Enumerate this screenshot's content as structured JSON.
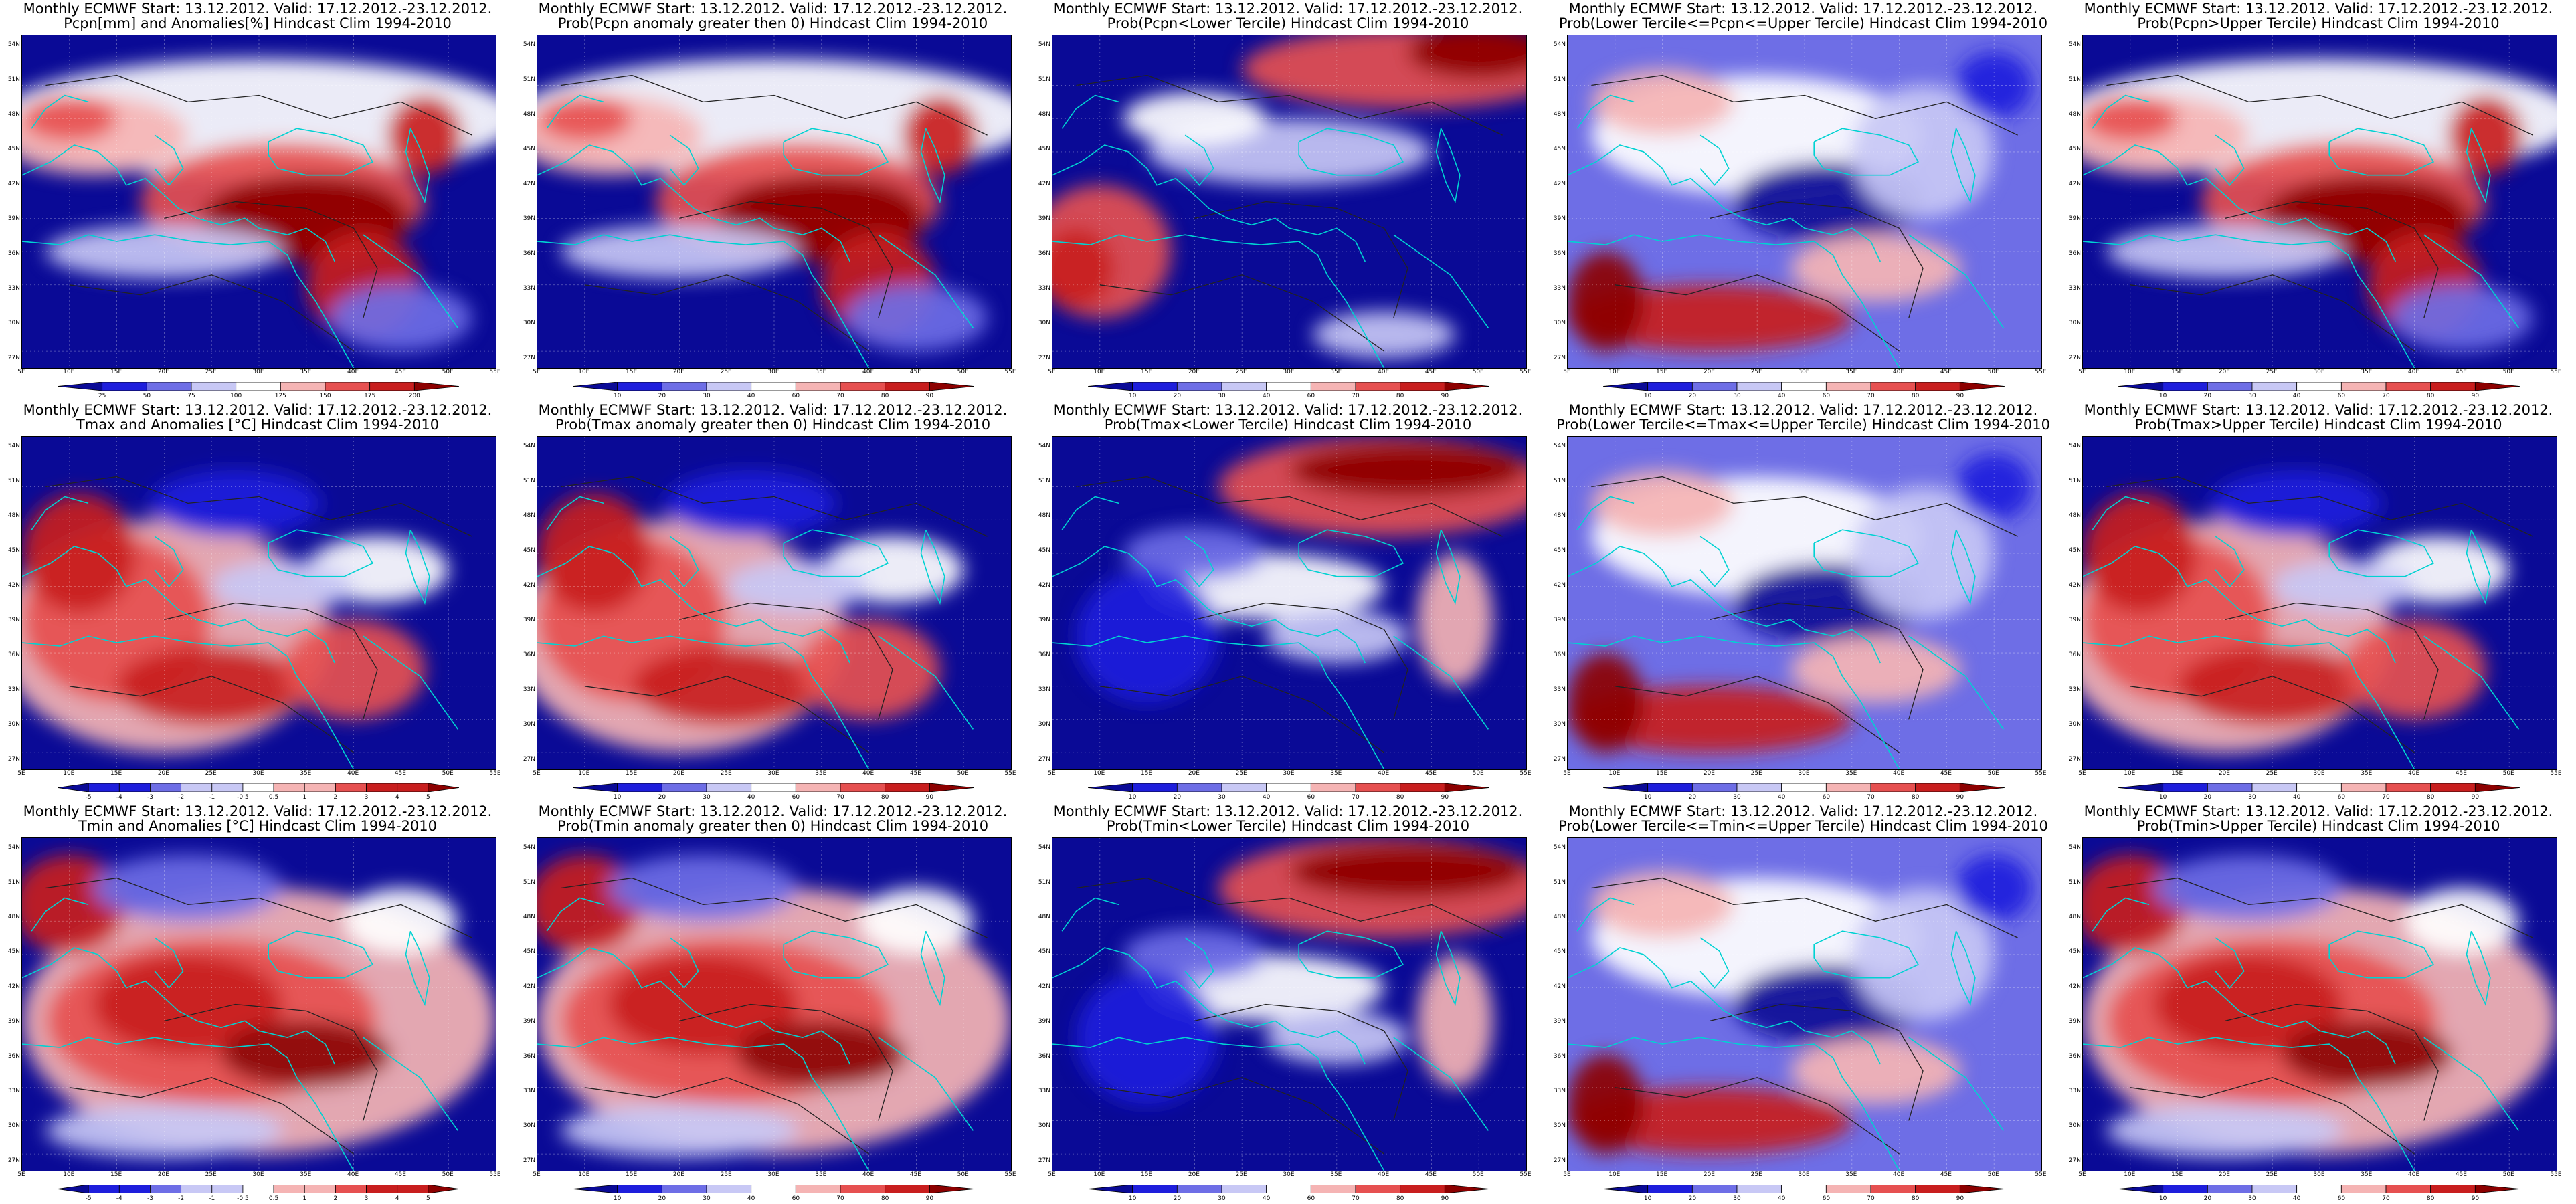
{
  "colors": {
    "ocean_blue": "#0a0a96",
    "deep_blue": "#1e1edc",
    "mid_blue": "#6e6ee6",
    "light_blue": "#c8c8f5",
    "white": "#ffffff",
    "light_red": "#f5b4b4",
    "mid_red": "#e65050",
    "deep_red": "#c81e1e",
    "dark_red": "#8c0000",
    "coast": "#00d2d2",
    "contour": "#222222"
  },
  "lat_labels": [
    "54N",
    "51N",
    "48N",
    "45N",
    "42N",
    "39N",
    "36N",
    "33N",
    "30N",
    "27N"
  ],
  "lon_labels": [
    "5E",
    "10E",
    "15E",
    "20E",
    "25E",
    "30E",
    "35E",
    "40E",
    "45E",
    "50E",
    "55E"
  ],
  "scales": {
    "precip": [
      "25",
      "50",
      "75",
      "100",
      "125",
      "150",
      "175",
      "200"
    ],
    "prob": [
      "10",
      "20",
      "30",
      "40",
      "60",
      "70",
      "80",
      "90"
    ],
    "temp": [
      "-5",
      "-4",
      "-3",
      "-2",
      "-1",
      "-0.5",
      "0.5",
      "1",
      "2",
      "3",
      "4",
      "5"
    ]
  },
  "panels": [
    {
      "title1": "Monthly ECMWF Start: 13.12.2012. Valid: 17.12.2012.-23.12.2012.",
      "title2": "Pcpn[mm] and Anomalies[%] Hindcast Clim 1994-2010",
      "scale": "precip",
      "pattern": "wet"
    },
    {
      "title1": "Monthly ECMWF Start: 13.12.2012. Valid: 17.12.2012.-23.12.2012.",
      "title2": "Prob(Pcpn anomaly greater then 0) Hindcast Clim 1994-2010",
      "scale": "prob",
      "pattern": "wet"
    },
    {
      "title1": "Monthly ECMWF Start: 13.12.2012. Valid: 17.12.2012.-23.12.2012.",
      "title2": "Prob(Pcpn<Lower Tercile) Hindcast Clim 1994-2010",
      "scale": "prob",
      "pattern": "drysouth"
    },
    {
      "title1": "Monthly ECMWF Start: 13.12.2012. Valid: 17.12.2012.-23.12.2012.",
      "title2": "Prob(Lower Tercile<=Pcpn<=Upper Tercile) Hindcast Clim 1994-2010",
      "scale": "prob",
      "pattern": "mixed"
    },
    {
      "title1": "Monthly ECMWF Start: 13.12.2012. Valid: 17.12.2012.-23.12.2012.",
      "title2": "Prob(Pcpn>Upper Tercile) Hindcast Clim 1994-2010",
      "scale": "prob",
      "pattern": "wet"
    },
    {
      "title1": "Monthly ECMWF Start: 13.12.2012. Valid: 17.12.2012.-23.12.2012.",
      "title2": "Tmax and Anomalies [°C] Hindcast Clim 1994-2010",
      "scale": "temp",
      "pattern": "warmwest"
    },
    {
      "title1": "Monthly ECMWF Start: 13.12.2012. Valid: 17.12.2012.-23.12.2012.",
      "title2": "Prob(Tmax anomaly greater then 0) Hindcast Clim 1994-2010",
      "scale": "prob",
      "pattern": "warmwest"
    },
    {
      "title1": "Monthly ECMWF Start: 13.12.2012. Valid: 17.12.2012.-23.12.2012.",
      "title2": "Prob(Tmax<Lower Tercile) Hindcast Clim 1994-2010",
      "scale": "prob",
      "pattern": "coldnortheast"
    },
    {
      "title1": "Monthly ECMWF Start: 13.12.2012. Valid: 17.12.2012.-23.12.2012.",
      "title2": "Prob(Lower Tercile<=Tmax<=Upper Tercile) Hindcast Clim 1994-2010",
      "scale": "prob",
      "pattern": "mixed"
    },
    {
      "title1": "Monthly ECMWF Start: 13.12.2012. Valid: 17.12.2012.-23.12.2012.",
      "title2": "Prob(Tmax>Upper Tercile) Hindcast Clim 1994-2010",
      "scale": "prob",
      "pattern": "warmwest"
    },
    {
      "title1": "Monthly ECMWF Start: 13.12.2012. Valid: 17.12.2012.-23.12.2012.",
      "title2": "Tmin and Anomalies [°C] Hindcast Clim 1994-2010",
      "scale": "temp",
      "pattern": "warmwide"
    },
    {
      "title1": "Monthly ECMWF Start: 13.12.2012. Valid: 17.12.2012.-23.12.2012.",
      "title2": "Prob(Tmin anomaly greater then 0) Hindcast Clim 1994-2010",
      "scale": "prob",
      "pattern": "warmwide"
    },
    {
      "title1": "Monthly ECMWF Start: 13.12.2012. Valid: 17.12.2012.-23.12.2012.",
      "title2": "Prob(Tmin<Lower Tercile) Hindcast Clim 1994-2010",
      "scale": "prob",
      "pattern": "coldnortheast"
    },
    {
      "title1": "Monthly ECMWF Start: 13.12.2012. Valid: 17.12.2012.-23.12.2012.",
      "title2": "Prob(Lower Tercile<=Tmin<=Upper Tercile) Hindcast Clim 1994-2010",
      "scale": "prob",
      "pattern": "mixed"
    },
    {
      "title1": "Monthly ECMWF Start: 13.12.2012. Valid: 17.12.2012.-23.12.2012.",
      "title2": "Prob(Tmin>Upper Tercile) Hindcast Clim 1994-2010",
      "scale": "prob",
      "pattern": "warmwide"
    }
  ]
}
